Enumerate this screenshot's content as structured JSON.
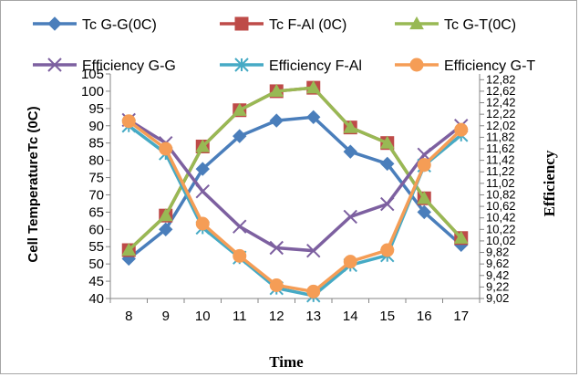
{
  "chart_data": {
    "type": "line",
    "x": [
      8,
      9,
      10,
      11,
      12,
      13,
      14,
      15,
      16,
      17
    ],
    "xlabel": "Time",
    "ylabel": "Cell TemperatureTc (0C)",
    "ylabel_right": "Efficiency",
    "ylim": [
      40,
      105
    ],
    "ylim_right": [
      9.02,
      12.92
    ],
    "yticks": [
      "40",
      "45",
      "50",
      "55",
      "60",
      "65",
      "70",
      "75",
      "80",
      "85",
      "90",
      "95",
      "100",
      "105"
    ],
    "yticks_right": [
      "9,02",
      "9,22",
      "9,42",
      "9,62",
      "9,82",
      "10,02",
      "10,22",
      "10,42",
      "10,62",
      "10,82",
      "11,02",
      "11,22",
      "11,42",
      "11,62",
      "11,82",
      "12,02",
      "12,22",
      "12,42",
      "12,62",
      "12,82"
    ],
    "grid": false,
    "legend_position": "top",
    "series": [
      {
        "name": "Tc G-G(0C)",
        "axis": "left",
        "color": "#4a7ebb",
        "marker": "diamond",
        "values": [
          51.5,
          60,
          77.5,
          87,
          91.5,
          92.5,
          82.5,
          79,
          65,
          55.5
        ]
      },
      {
        "name": "Tc F-Al (0C)",
        "axis": "left",
        "color": "#be4b48",
        "marker": "square",
        "values": [
          54,
          64,
          84,
          94.5,
          100,
          101,
          89.5,
          85,
          69,
          57.5
        ]
      },
      {
        "name": "Tc G-T(0C)",
        "axis": "left",
        "color": "#98b954",
        "marker": "triangle",
        "values": [
          54,
          64,
          84,
          94.5,
          100,
          101,
          89.5,
          85,
          69,
          57.5
        ]
      },
      {
        "name": "Efficiency G-G",
        "axis": "right",
        "color": "#7d60a0",
        "marker": "x",
        "values": [
          12.12,
          11.72,
          10.88,
          10.27,
          9.9,
          9.85,
          10.44,
          10.66,
          11.52,
          12.02
        ]
      },
      {
        "name": "Efficiency F-Al",
        "axis": "right",
        "color": "#46aac5",
        "marker": "star",
        "values": [
          12.02,
          11.54,
          10.25,
          9.73,
          9.2,
          9.07,
          9.6,
          9.77,
          11.33,
          11.86
        ]
      },
      {
        "name": "Efficiency G-T",
        "axis": "right",
        "color": "#f59d56",
        "marker": "circle",
        "values": [
          12.1,
          11.62,
          10.32,
          9.76,
          9.25,
          9.14,
          9.66,
          9.86,
          11.34,
          11.95
        ]
      }
    ]
  }
}
